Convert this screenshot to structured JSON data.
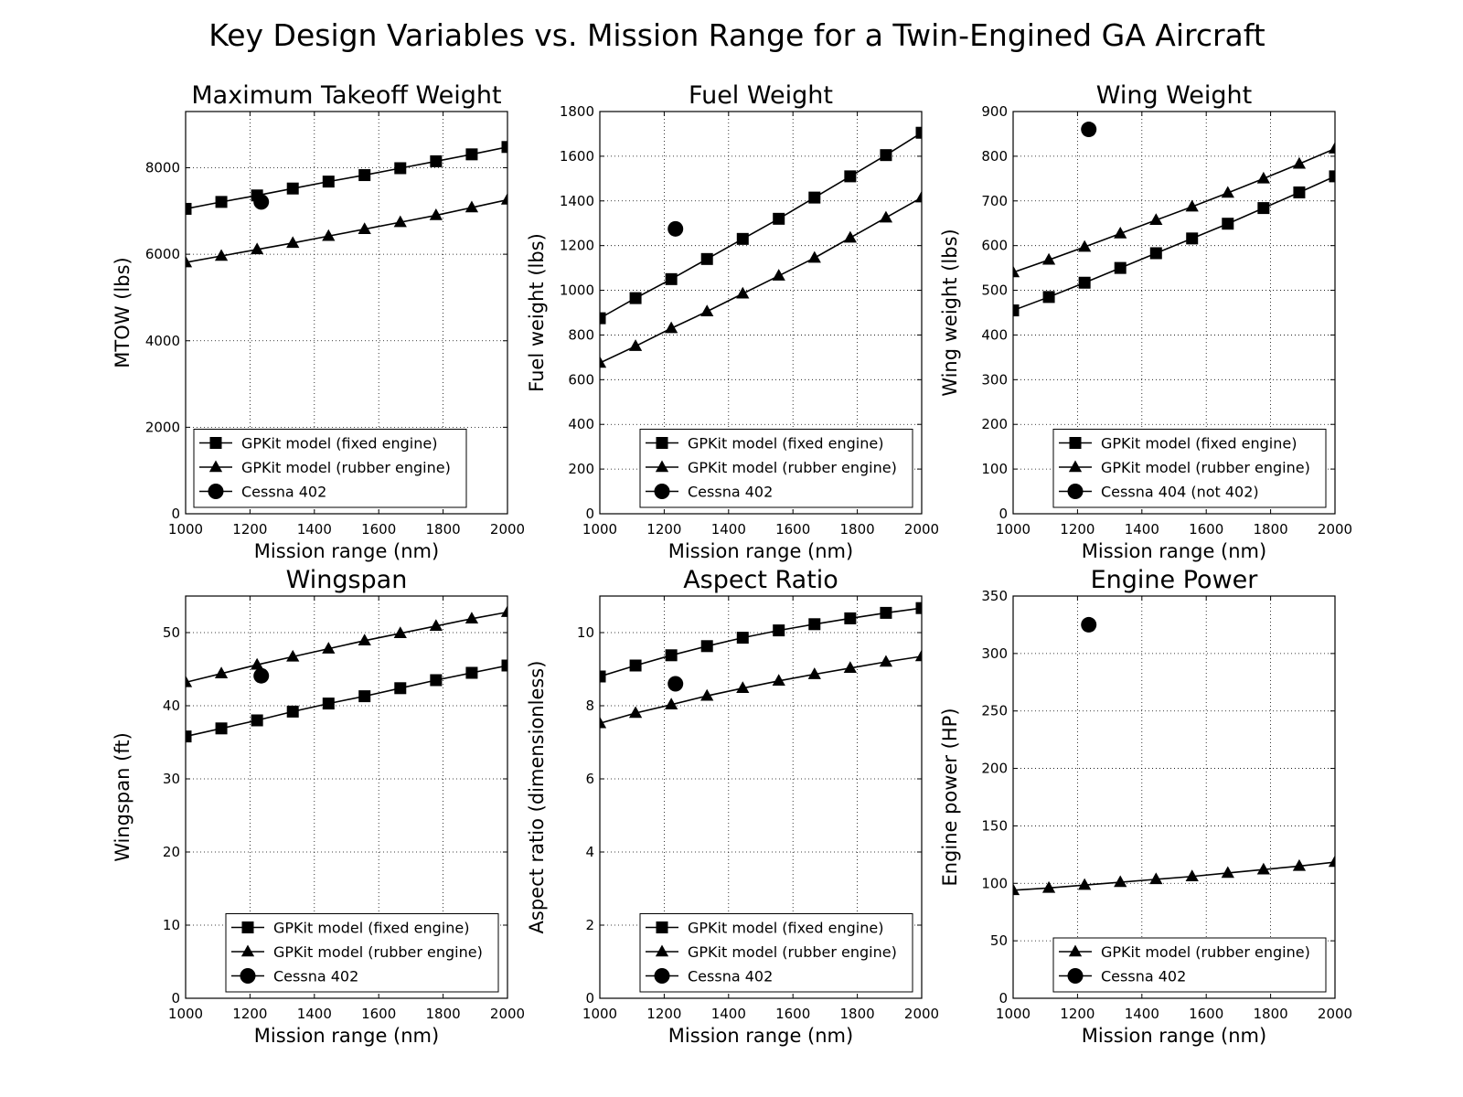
{
  "figure": {
    "suptitle": "Key Design Variables vs. Mission Range for a Twin-Engined GA Aircraft"
  },
  "chart_data": [
    {
      "type": "line",
      "title": "Maximum Takeoff Weight",
      "xlabel": "Mission range (nm)",
      "ylabel": "MTOW (lbs)",
      "xlim": [
        1000,
        2000
      ],
      "ylim": [
        0,
        9300
      ],
      "xticks": [
        1000,
        1200,
        1400,
        1600,
        1800,
        2000
      ],
      "yticks": [
        0,
        2000,
        4000,
        6000,
        8000
      ],
      "grid": true,
      "legend_position": "lower-left",
      "x": [
        1000,
        1111,
        1222,
        1333,
        1444,
        1556,
        1667,
        1778,
        1889,
        2000
      ],
      "series": [
        {
          "name": "GPKit model (fixed engine)",
          "marker": "square",
          "values": [
            7050,
            7210,
            7360,
            7520,
            7680,
            7830,
            7990,
            8150,
            8310,
            8480
          ]
        },
        {
          "name": "GPKit model (rubber engine)",
          "marker": "triangle",
          "values": [
            5810,
            5960,
            6110,
            6260,
            6420,
            6580,
            6740,
            6900,
            7080,
            7260
          ]
        }
      ],
      "points": [
        {
          "name": "Cessna 402",
          "marker": "circle",
          "x": 1235,
          "y": 7210
        }
      ]
    },
    {
      "type": "line",
      "title": "Fuel Weight",
      "xlabel": "Mission range (nm)",
      "ylabel": "Fuel weight (lbs)",
      "xlim": [
        1000,
        2000
      ],
      "ylim": [
        0,
        1800
      ],
      "xticks": [
        1000,
        1200,
        1400,
        1600,
        1800,
        2000
      ],
      "yticks": [
        0,
        200,
        400,
        600,
        800,
        1000,
        1200,
        1400,
        1600,
        1800
      ],
      "grid": true,
      "legend_position": "lower-right",
      "x": [
        1000,
        1111,
        1222,
        1333,
        1444,
        1556,
        1667,
        1778,
        1889,
        2000
      ],
      "series": [
        {
          "name": "GPKit model (fixed engine)",
          "marker": "square",
          "values": [
            875,
            965,
            1050,
            1140,
            1230,
            1320,
            1415,
            1510,
            1605,
            1705
          ]
        },
        {
          "name": "GPKit model (rubber engine)",
          "marker": "triangle",
          "values": [
            675,
            750,
            830,
            905,
            985,
            1065,
            1145,
            1235,
            1325,
            1415
          ]
        }
      ],
      "points": [
        {
          "name": "Cessna 402",
          "marker": "circle",
          "x": 1235,
          "y": 1275
        }
      ]
    },
    {
      "type": "line",
      "title": "Wing Weight",
      "xlabel": "Mission range (nm)",
      "ylabel": "Wing weight (lbs)",
      "xlim": [
        1000,
        2000
      ],
      "ylim": [
        0,
        900
      ],
      "xticks": [
        1000,
        1200,
        1400,
        1600,
        1800,
        2000
      ],
      "yticks": [
        0,
        100,
        200,
        300,
        400,
        500,
        600,
        700,
        800,
        900
      ],
      "grid": true,
      "legend_position": "lower-right",
      "x": [
        1000,
        1111,
        1222,
        1333,
        1444,
        1556,
        1667,
        1778,
        1889,
        2000
      ],
      "series": [
        {
          "name": "GPKit model (fixed engine)",
          "marker": "square",
          "values": [
            455,
            485,
            517,
            550,
            583,
            616,
            649,
            684,
            719,
            755
          ]
        },
        {
          "name": "GPKit model (rubber engine)",
          "marker": "triangle",
          "values": [
            540,
            568,
            597,
            627,
            657,
            687,
            718,
            750,
            783,
            817
          ]
        }
      ],
      "points": [
        {
          "name": "Cessna 404 (not 402)",
          "marker": "circle",
          "x": 1235,
          "y": 860
        }
      ]
    },
    {
      "type": "line",
      "title": "Wingspan",
      "xlabel": "Mission range (nm)",
      "ylabel": "Wingspan (ft)",
      "xlim": [
        1000,
        2000
      ],
      "ylim": [
        0,
        55
      ],
      "xticks": [
        1000,
        1200,
        1400,
        1600,
        1800,
        2000
      ],
      "yticks": [
        0,
        10,
        20,
        30,
        40,
        50
      ],
      "grid": true,
      "legend_position": "lower-right",
      "x": [
        1000,
        1111,
        1222,
        1333,
        1444,
        1556,
        1667,
        1778,
        1889,
        2000
      ],
      "series": [
        {
          "name": "GPKit model (fixed engine)",
          "marker": "square",
          "values": [
            35.8,
            36.9,
            38.0,
            39.2,
            40.3,
            41.3,
            42.4,
            43.5,
            44.5,
            45.5
          ]
        },
        {
          "name": "GPKit model (rubber engine)",
          "marker": "triangle",
          "values": [
            43.2,
            44.4,
            45.6,
            46.7,
            47.8,
            48.9,
            49.9,
            50.9,
            51.9,
            52.8
          ]
        }
      ],
      "points": [
        {
          "name": "Cessna 402",
          "marker": "circle",
          "x": 1235,
          "y": 44.1
        }
      ]
    },
    {
      "type": "line",
      "title": "Aspect Ratio",
      "xlabel": "Mission range (nm)",
      "ylabel": "Aspect ratio (dimensionless)",
      "xlim": [
        1000,
        2000
      ],
      "ylim": [
        0,
        11
      ],
      "xticks": [
        1000,
        1200,
        1400,
        1600,
        1800,
        2000
      ],
      "yticks": [
        0,
        2,
        4,
        6,
        8,
        10
      ],
      "grid": true,
      "legend_position": "lower-right",
      "x": [
        1000,
        1111,
        1222,
        1333,
        1444,
        1556,
        1667,
        1778,
        1889,
        2000
      ],
      "series": [
        {
          "name": "GPKit model (fixed engine)",
          "marker": "square",
          "values": [
            8.8,
            9.1,
            9.38,
            9.63,
            9.86,
            10.06,
            10.23,
            10.39,
            10.54,
            10.67
          ]
        },
        {
          "name": "GPKit model (rubber engine)",
          "marker": "triangle",
          "values": [
            7.52,
            7.8,
            8.03,
            8.27,
            8.48,
            8.68,
            8.86,
            9.03,
            9.2,
            9.35
          ]
        }
      ],
      "points": [
        {
          "name": "Cessna 402",
          "marker": "circle",
          "x": 1235,
          "y": 8.6
        }
      ]
    },
    {
      "type": "line",
      "title": "Engine Power",
      "xlabel": "Mission range (nm)",
      "ylabel": "Engine power (HP)",
      "xlim": [
        1000,
        2000
      ],
      "ylim": [
        0,
        350
      ],
      "xticks": [
        1000,
        1200,
        1400,
        1600,
        1800,
        2000
      ],
      "yticks": [
        0,
        50,
        100,
        150,
        200,
        250,
        300,
        350
      ],
      "grid": true,
      "legend_position": "lower-right",
      "x": [
        1000,
        1111,
        1222,
        1333,
        1444,
        1556,
        1667,
        1778,
        1889,
        2000
      ],
      "series": [
        {
          "name": "GPKit model (rubber engine)",
          "marker": "triangle",
          "values": [
            94,
            96,
            98.5,
            101,
            103.5,
            106,
            109,
            112,
            115,
            118.5
          ]
        }
      ],
      "points": [
        {
          "name": "Cessna 402",
          "marker": "circle",
          "x": 1235,
          "y": 325
        }
      ]
    }
  ]
}
